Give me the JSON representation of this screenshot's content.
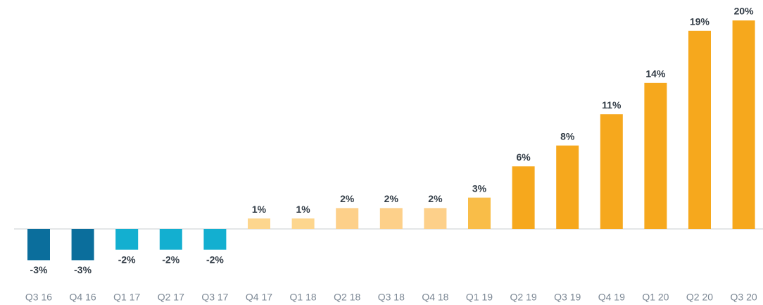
{
  "chart_data": {
    "type": "bar",
    "categories": [
      "Q3 16",
      "Q4 16",
      "Q1 17",
      "Q2 17",
      "Q3 17",
      "Q4 17",
      "Q1 18",
      "Q2 18",
      "Q3 18",
      "Q4 18",
      "Q1 19",
      "Q2 19",
      "Q3 19",
      "Q4 19",
      "Q1 20",
      "Q2 20",
      "Q3 20"
    ],
    "values": [
      -3,
      -3,
      -2,
      -2,
      -2,
      1,
      1,
      2,
      2,
      2,
      3,
      6,
      8,
      11,
      14,
      19,
      20
    ],
    "value_labels": [
      "-3%",
      "-3%",
      "-2%",
      "-2%",
      "-2%",
      "1%",
      "1%",
      "2%",
      "2%",
      "2%",
      "3%",
      "6%",
      "8%",
      "11%",
      "14%",
      "19%",
      "20%"
    ],
    "colors": [
      "#0b6e9c",
      "#0b6e9c",
      "#13afd0",
      "#13afd0",
      "#13afd0",
      "#fdd68e",
      "#fdd68e",
      "#fdd08a",
      "#fdd08a",
      "#fdd08a",
      "#f9bd48",
      "#f6a81d",
      "#f6a81d",
      "#f6a81d",
      "#f6a81d",
      "#f6a81d",
      "#f6a81d"
    ]
  }
}
